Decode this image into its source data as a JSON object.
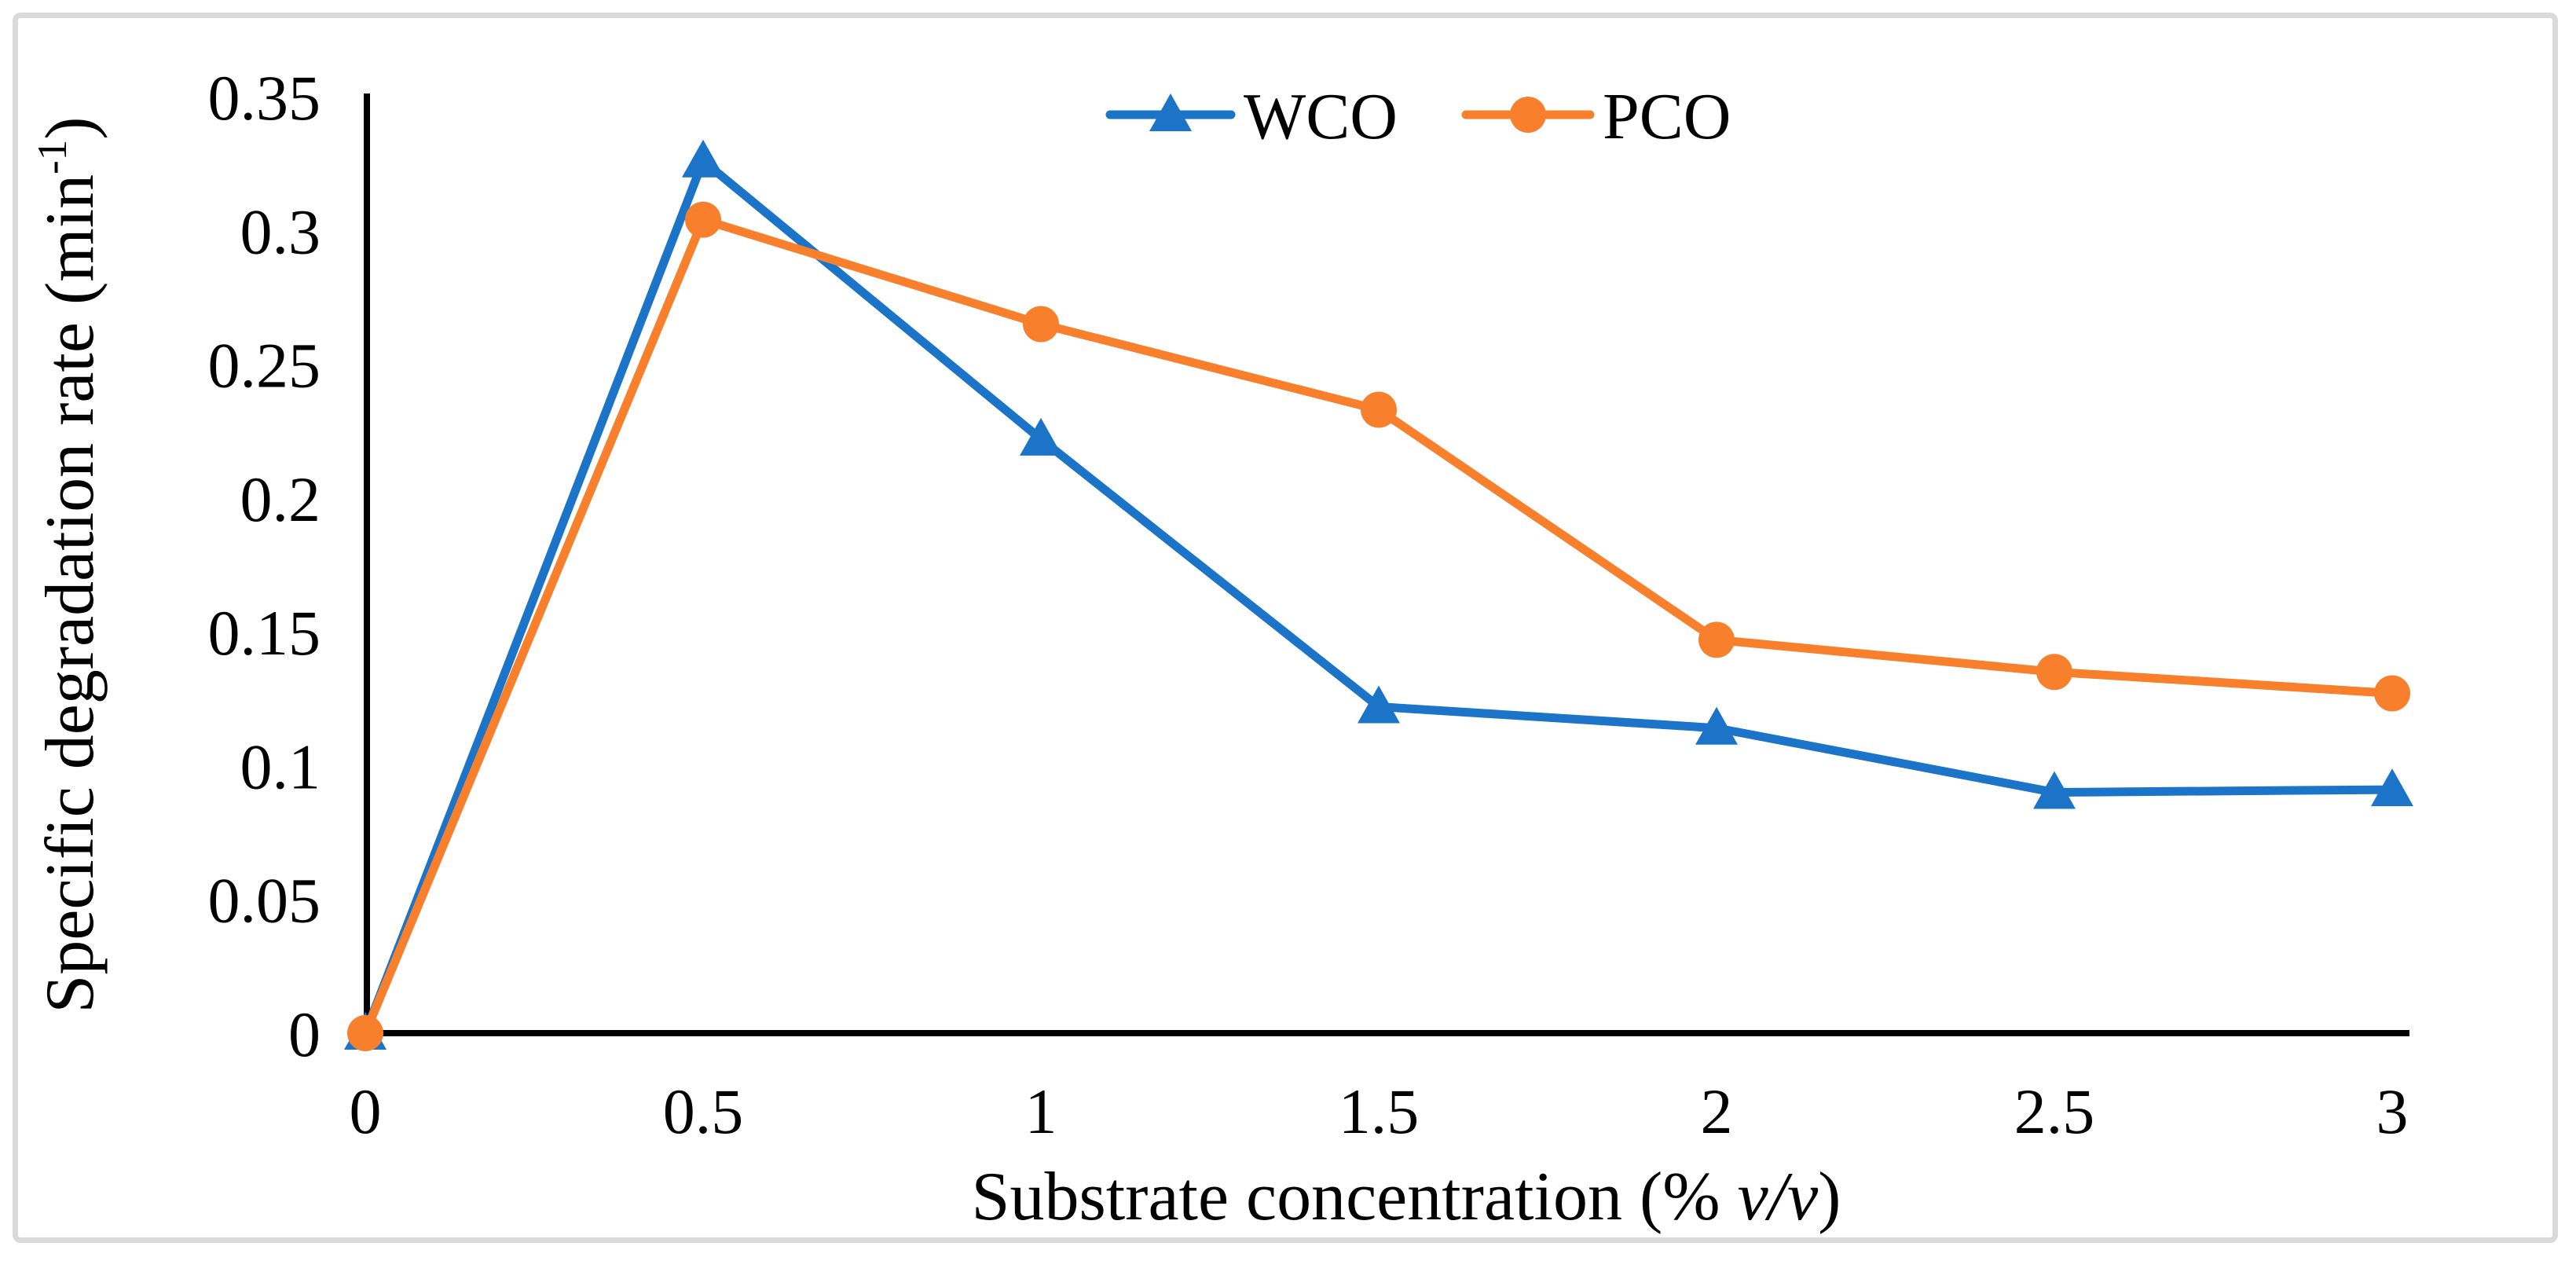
{
  "figure": {
    "background_color": "#ffffff",
    "border_color": "#dadada"
  },
  "chart_data": {
    "type": "line",
    "title": "",
    "x": [
      0,
      0.5,
      1,
      1.5,
      2,
      2.5,
      3
    ],
    "series": [
      {
        "name": "WCO",
        "marker": "triangle",
        "color": "#1b74c8",
        "values": [
          0,
          0.326,
          0.222,
          0.122,
          0.114,
          0.09,
          0.091
        ]
      },
      {
        "name": "PCO",
        "marker": "circle",
        "color": "#f8802d",
        "values": [
          0,
          0.304,
          0.265,
          0.233,
          0.147,
          0.135,
          0.127
        ]
      }
    ],
    "xlabel": {
      "pre": "Substrate concentration (% ",
      "italic": "v/v",
      "post": ")"
    },
    "ylabel": {
      "pre": "Specific degradation rate (min",
      "sup": "-1",
      "post": ")"
    },
    "x_tick_labels": [
      "0",
      "0.5",
      "1",
      "1.5",
      "2",
      "2.5",
      "3"
    ],
    "x_tick_values": [
      0,
      0.5,
      1,
      1.5,
      2,
      2.5,
      3
    ],
    "y_tick_labels": [
      "0",
      "0.05",
      "0.1",
      "0.15",
      "0.2",
      "0.25",
      "0.3",
      "0.35"
    ],
    "y_tick_values": [
      0,
      0.05,
      0.1,
      0.15,
      0.2,
      0.25,
      0.3,
      0.35
    ],
    "xlim": [
      0,
      3
    ],
    "ylim": [
      0,
      0.35
    ],
    "grid": false,
    "legend_position": "top-center",
    "axis_color": "#000000",
    "text_color": "#000000"
  }
}
